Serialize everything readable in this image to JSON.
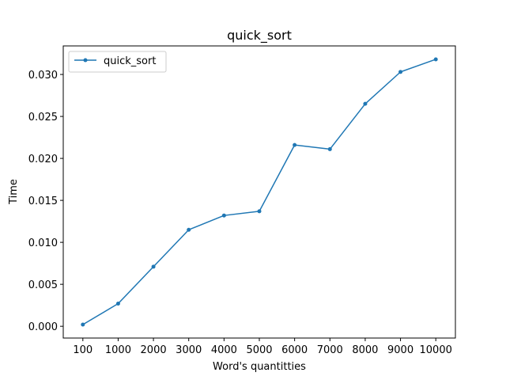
{
  "chart_data": {
    "type": "line",
    "title": "quick_sort",
    "xlabel": "Word's quantitties",
    "ylabel": "Time",
    "categories": [
      "100",
      "1000",
      "2000",
      "3000",
      "4000",
      "5000",
      "6000",
      "7000",
      "8000",
      "9000",
      "10000"
    ],
    "series": [
      {
        "name": "quick_sort",
        "color": "#1f77b4",
        "values": [
          0.0002,
          0.0027,
          0.0071,
          0.0115,
          0.0132,
          0.0137,
          0.0216,
          0.0211,
          0.0265,
          0.0303,
          0.0318
        ]
      }
    ],
    "ylim": [
      -0.0014,
      0.0334
    ],
    "yticks": [
      "0.000",
      "0.005",
      "0.010",
      "0.015",
      "0.020",
      "0.025",
      "0.030"
    ],
    "ytick_values": [
      0.0,
      0.005,
      0.01,
      0.015,
      0.02,
      0.025,
      0.03
    ],
    "grid": false,
    "legend": "top-left"
  }
}
